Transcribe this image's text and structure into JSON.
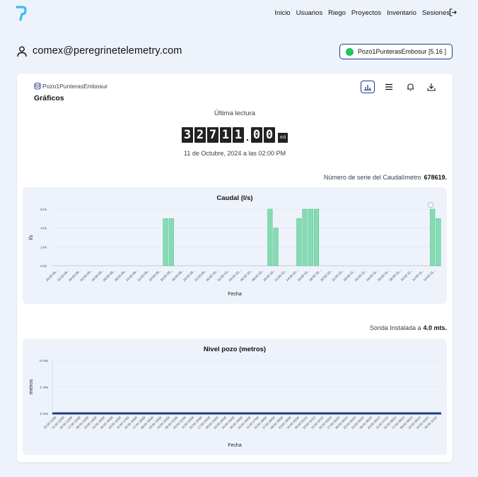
{
  "nav": {
    "items": [
      "Inicio",
      "Usuarios",
      "Riego",
      "Proyectos",
      "Inventario",
      "Sesiones"
    ],
    "logout_icon": "logout-icon"
  },
  "user": {
    "email": "comex@peregrinetelemetry.com",
    "icon": "user-icon"
  },
  "device_select": {
    "label": "Pozo1PunterasEmbosur [5.16 ]",
    "status_color": "#22c55e"
  },
  "card": {
    "well_name": "Pozo1PunterasEmbosur",
    "section_title": "Gráficos",
    "tools": [
      "bar-chart-icon",
      "menu-icon",
      "bell-icon",
      "download-icon"
    ]
  },
  "reading": {
    "label": "Última lectura",
    "integer_digits": [
      "3",
      "2",
      "7",
      "1",
      "1"
    ],
    "decimal_digits": [
      "0",
      "0"
    ],
    "separator": ".",
    "unit": "m3",
    "date": "11 de Octubre, 2024 a las 02:00 PM"
  },
  "serial": {
    "label": "Número de serie del Caudalímetro",
    "value": "678619."
  },
  "sonda": {
    "label": "Sonda Instalada a",
    "value": "4.0 mts."
  },
  "colors": {
    "bar": "#86dcb2",
    "bar_stroke": "#3fb985",
    "line": "#1e3a8a",
    "accent": "#1e3a8a"
  },
  "chart_data": [
    {
      "type": "bar",
      "title": "Caudal (l/s)",
      "xlabel": "Fecha",
      "ylabel": "l/s",
      "ylim": [
        0,
        6
      ],
      "yticks": [
        "0 l/s",
        "2 l/s",
        "4 l/s",
        "6 l/s"
      ],
      "xtick_labels": [
        "20:00 06...",
        "22:00 08...",
        "00:00 09...",
        "02:00 09...",
        "04:00 09...",
        "06:00 09...",
        "08:00 09...",
        "10:00 09...",
        "12:00 09...",
        "14:00 09...",
        "16:00 09...",
        "18:00 09...",
        "20:00 09...",
        "22:00 09...",
        "00:00 10...",
        "02:00 10...",
        "04:00 10...",
        "06:00 10...",
        "08:00 10...",
        "10:00 10...",
        "12:00 10...",
        "14:00 10...",
        "16:00 10...",
        "18:00 10...",
        "20:00 10...",
        "22:00 10...",
        "00:00 11...",
        "02:00 11...",
        "04:00 11...",
        "06:00 11...",
        "08:00 11...",
        "10:00 11...",
        "12:00 11...",
        "14:00 11..."
      ],
      "values": [
        0,
        0,
        0,
        0,
        0,
        0,
        0,
        0,
        0,
        0,
        0,
        0,
        0,
        0,
        0,
        0,
        0,
        0,
        0,
        5,
        5,
        0,
        0,
        0,
        0,
        0,
        0,
        0,
        0,
        0,
        0,
        0,
        0,
        0,
        0,
        0,
        0,
        6,
        4,
        0,
        0,
        0,
        5,
        6,
        6,
        6,
        0,
        0,
        0,
        0,
        0,
        0,
        0,
        0,
        0,
        0,
        0,
        0,
        0,
        0,
        0,
        0,
        0,
        0,
        0,
        6,
        5
      ]
    },
    {
      "type": "line",
      "title": "Nivel pozo (metros)",
      "xlabel": "Fecha",
      "ylabel": "metros",
      "ylim": [
        0,
        2
      ],
      "y_inverted": true,
      "yticks": [
        "0 mts",
        "1 mts",
        "2 mts"
      ],
      "xtick_labels": [
        "20:00 11/09",
        "11:00 12/09",
        "02:00 13/09",
        "17:00 13/09",
        "08:00 14/09",
        "23:00 14/09",
        "14:00 15/09",
        "05:00 16/09",
        "20:00 16/09",
        "11:00 17/09",
        "02:00 18/09",
        "17:00 18/09",
        "08:00 19/09",
        "23:00 19/09",
        "14:00 20/09",
        "05:00 21/09",
        "20:00 21/09",
        "11:00 22/09",
        "02:00 23/09",
        "17:00 23/09",
        "08:00 24/09",
        "23:00 24/09",
        "14:00 25/09",
        "05:00 26/09",
        "20:00 26/09",
        "11:00 27/09",
        "02:00 28/09",
        "17:00 28/09",
        "08:00 29/09",
        "23:00 29/09",
        "14:00 30/09",
        "05:00 01/10",
        "20:00 01/10",
        "11:00 02/10",
        "02:00 03/10",
        "17:00 03/10",
        "08:00 04/10",
        "23:00 04/10",
        "14:00 05/10",
        "05:00 06/10",
        "20:00 06/10",
        "11:00 07/10",
        "02:00 08/10",
        "17:00 08/10",
        "08:00 09/10",
        "23:00 09/10",
        "14:00 10/10",
        "05:00 11/10"
      ],
      "values_note": "",
      "values": [
        2,
        2,
        2,
        2,
        2,
        2,
        2,
        2,
        2,
        2,
        2,
        2,
        2,
        2,
        2,
        2,
        2,
        2,
        2,
        2,
        2,
        2,
        2,
        2,
        2,
        2,
        2,
        2,
        2,
        2,
        2,
        2,
        2,
        2,
        2,
        2,
        2,
        2,
        2,
        2,
        2,
        2,
        2,
        2,
        2,
        2,
        2,
        2
      ]
    }
  ]
}
